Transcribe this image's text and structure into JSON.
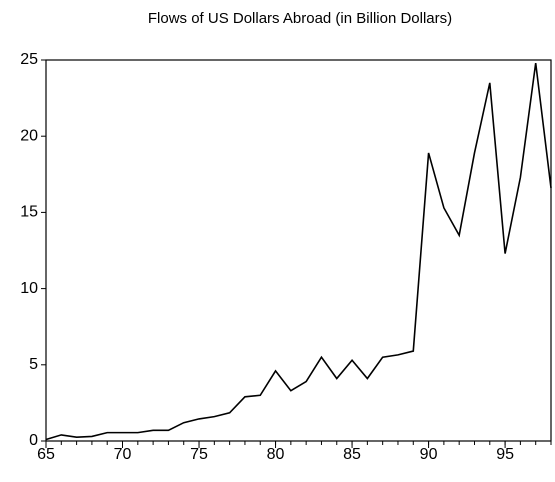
{
  "chart_data": {
    "type": "line",
    "title": "Flows of US Dollars Abroad (in Billion Dollars)",
    "x": [
      65,
      66,
      67,
      68,
      69,
      70,
      71,
      72,
      73,
      74,
      75,
      76,
      77,
      78,
      79,
      80,
      81,
      82,
      83,
      84,
      85,
      86,
      87,
      88,
      89,
      90,
      91,
      92,
      93,
      94,
      95,
      96,
      97,
      98
    ],
    "series": [
      {
        "name": "Flows",
        "color": "#000000",
        "values": [
          0.1,
          0.4,
          0.25,
          0.3,
          0.55,
          0.55,
          0.55,
          0.7,
          0.7,
          1.2,
          1.45,
          1.6,
          1.85,
          2.9,
          3.0,
          4.6,
          3.3,
          3.9,
          5.5,
          4.1,
          5.3,
          4.1,
          5.5,
          5.65,
          5.9,
          18.9,
          15.3,
          13.5,
          18.9,
          23.5,
          12.3,
          17.3,
          24.8,
          16.6
        ]
      }
    ],
    "xlim": [
      65,
      98
    ],
    "xticks": [
      65,
      70,
      75,
      80,
      85,
      90,
      95
    ],
    "ylim": [
      0,
      25
    ],
    "yticks": [
      0,
      5,
      10,
      15,
      20,
      25
    ],
    "grid": false
  }
}
